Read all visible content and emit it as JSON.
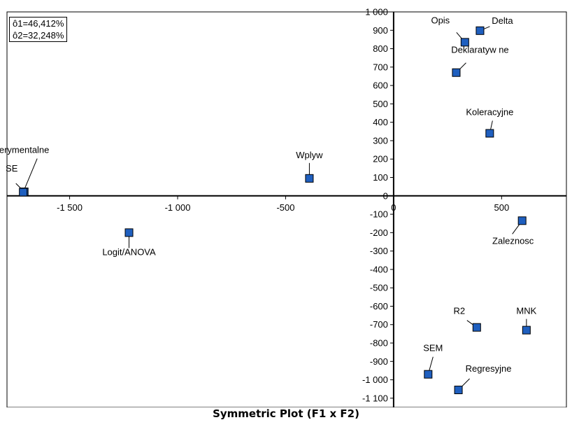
{
  "caption": "Symmetric Plot (F1 x F2)",
  "inertia": [
    "ô1=46,412%",
    "ô2=32,248%"
  ],
  "colors": {
    "marker_fill": "#1f5fbf",
    "marker_stroke": "#000000",
    "axis": "#000000"
  },
  "chart_data": {
    "type": "scatter",
    "title": "Symmetric Plot (F1 x F2)",
    "xlabel": "",
    "ylabel": "",
    "xlim": [
      -1790,
      800
    ],
    "ylim": [
      -1150,
      1000
    ],
    "xticks": [
      -1500,
      -1000,
      -500,
      0,
      500
    ],
    "xtick_labels": [
      "-1 500",
      "-1 000",
      "-500",
      "0",
      "500"
    ],
    "yticks": [
      1000,
      900,
      800,
      700,
      600,
      500,
      400,
      300,
      200,
      100,
      0,
      -100,
      -200,
      -300,
      -400,
      -500,
      -600,
      -700,
      -800,
      -900,
      -1000,
      -1100
    ],
    "ytick_labels": [
      "1 000",
      "900",
      "800",
      "700",
      "600",
      "500",
      "400",
      "300",
      "200",
      "100",
      "0",
      "-100",
      "-200",
      "-300",
      "-400",
      "-500",
      "-600",
      "-700",
      "-800",
      "-900",
      "-1 000",
      "-1 100"
    ],
    "grid": false,
    "points": [
      {
        "label": "Opis",
        "x": 330,
        "y": 835
      },
      {
        "label": "Delta",
        "x": 400,
        "y": 898
      },
      {
        "label": "Deklaratyw ne",
        "x": 290,
        "y": 670
      },
      {
        "label": "Koleracyjne",
        "x": 445,
        "y": 340
      },
      {
        "label": "Wplyw",
        "x": -390,
        "y": 95
      },
      {
        "label": "SE",
        "x": -1710,
        "y": 22
      },
      {
        "label": "Eksperymentalne",
        "x": -1715,
        "y": 20
      },
      {
        "label": "Logit/ANOVA",
        "x": -1225,
        "y": -200
      },
      {
        "label": "Zaleznosc",
        "x": 595,
        "y": -135
      },
      {
        "label": "R2",
        "x": 385,
        "y": -715
      },
      {
        "label": "MNK",
        "x": 615,
        "y": -730
      },
      {
        "label": "SEM",
        "x": 160,
        "y": -970
      },
      {
        "label": "Regresyjne",
        "x": 300,
        "y": -1055
      }
    ]
  }
}
